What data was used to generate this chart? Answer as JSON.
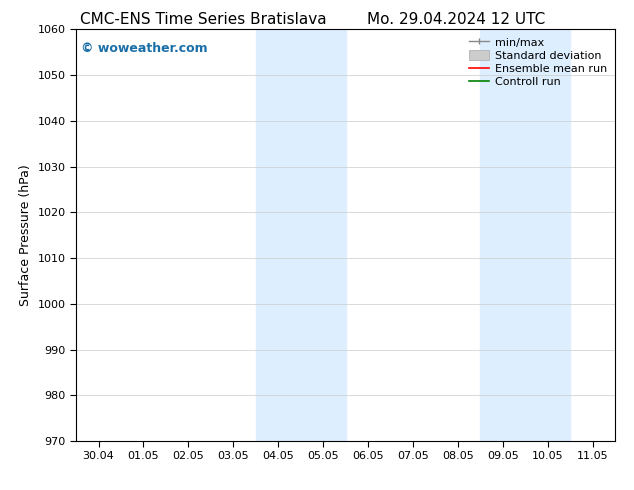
{
  "title_left": "CMC-ENS Time Series Bratislava",
  "title_right": "Mo. 29.04.2024 12 UTC",
  "ylabel": "Surface Pressure (hPa)",
  "ylim": [
    970,
    1060
  ],
  "yticks": [
    970,
    980,
    990,
    1000,
    1010,
    1020,
    1030,
    1040,
    1050,
    1060
  ],
  "xtick_labels": [
    "30.04",
    "01.05",
    "02.05",
    "03.05",
    "04.05",
    "05.05",
    "06.05",
    "07.05",
    "08.05",
    "09.05",
    "10.05",
    "11.05"
  ],
  "shaded_regions": [
    {
      "xstart": 4.0,
      "xend": 6.0
    },
    {
      "xstart": 9.0,
      "xend": 11.0
    }
  ],
  "shade_color": "#ddeeff",
  "watermark": "© woweather.com",
  "watermark_color": "#1a6fa8",
  "background_color": "#ffffff",
  "grid_color": "#cccccc",
  "title_fontsize": 11,
  "tick_fontsize": 8,
  "ylabel_fontsize": 9,
  "legend_fontsize": 8
}
